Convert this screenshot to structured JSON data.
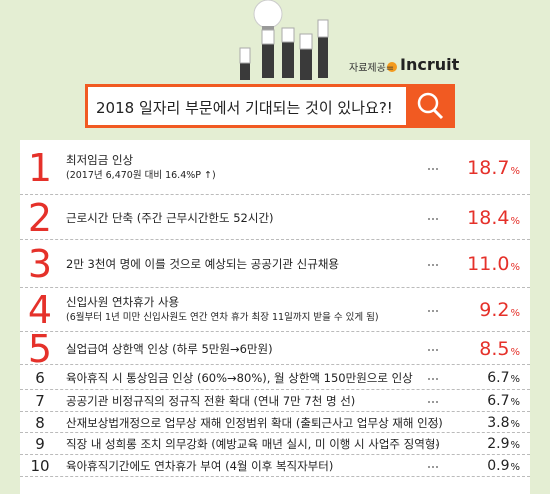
{
  "header": {
    "source_label": "자료제공=",
    "source_name": "Incruit",
    "question": "2018 일자리 부문에서 기대되는 것이 있나요?!"
  },
  "items": [
    {
      "rank": "1",
      "lines": [
        "최저임금 인상",
        "(2017년 6,470원 대비 16.4%P ↑)"
      ],
      "value": "18.7",
      "unit": "%"
    },
    {
      "rank": "2",
      "lines": [
        "근로시간 단축 (주간 근무시간한도 52시간)"
      ],
      "value": "18.4",
      "unit": "%"
    },
    {
      "rank": "3",
      "lines": [
        "2만 3천여 명에 이를 것으로 예상되는 공공기관 신규채용"
      ],
      "value": "11.0",
      "unit": "%"
    },
    {
      "rank": "4",
      "lines": [
        "신입사원 연차휴가 사용",
        "(6월부터 1년 미만 신입사원도 연간 연차 휴가 최장 11일까지 받을 수 있게 됨)"
      ],
      "value": "9.2",
      "unit": "%"
    },
    {
      "rank": "5",
      "lines": [
        "실업급여 상한액 인상 (하루 5만원→6만원)"
      ],
      "value": "8.5",
      "unit": "%"
    },
    {
      "rank": "6",
      "lines": [
        "육아휴직 시 통상임금 인상 (60%→80%), 월 상한액 150만원으로 인상"
      ],
      "value": "6.7",
      "unit": "%"
    },
    {
      "rank": "7",
      "lines": [
        "공공기관 비정규직의 정규직 전환 확대 (연내 7만 7천 명 선)"
      ],
      "value": "6.7",
      "unit": "%"
    },
    {
      "rank": "8",
      "lines": [
        "산재보상법개정으로 업무상 재해 인정범위 확대 (출퇴근사고 업무상 재해 인정)"
      ],
      "value": "3.8",
      "unit": "%"
    },
    {
      "rank": "9",
      "lines": [
        "직장 내 성희롱 조치 의무강화 (예방교육 매년 실시, 미 이행 시 사업주 징역형)"
      ],
      "value": "2.9",
      "unit": "%"
    },
    {
      "rank": "10",
      "lines": [
        "육아휴직기간에도 연차휴가 부여 (4월 이후 복직자부터)"
      ],
      "value": "0.9",
      "unit": "%"
    }
  ]
}
